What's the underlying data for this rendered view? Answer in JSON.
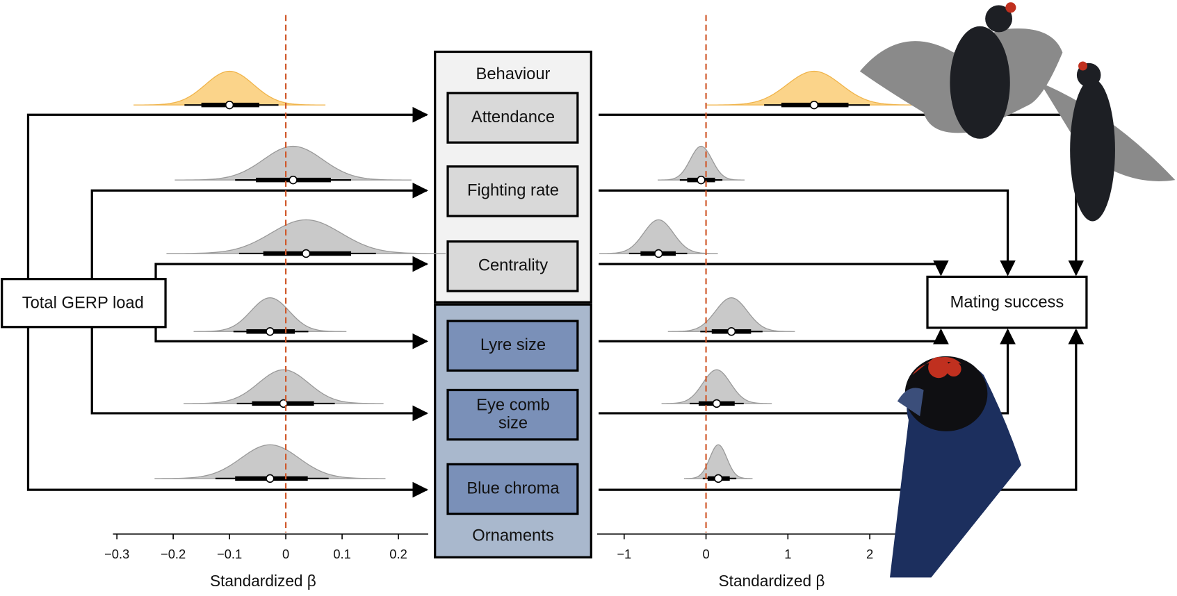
{
  "nodes": {
    "source": "Total GERP load",
    "target": "Mating success",
    "behaviour_group": "Behaviour",
    "ornaments_group": "Ornaments",
    "traits": [
      "Attendance",
      "Fighting rate",
      "Centrality",
      "Lyre size",
      "Eye comb",
      "Blue chroma"
    ],
    "trait_second_lines": [
      null,
      null,
      null,
      null,
      "size",
      null
    ]
  },
  "left_panel": {
    "axis_label": "Standardized β",
    "xlim": [
      -0.307,
      0.253
    ],
    "xticks": [
      {
        "value": -0.3,
        "label": "−0.3"
      },
      {
        "value": -0.2,
        "label": "−0.2"
      },
      {
        "value": -0.1,
        "label": "−0.1"
      },
      0,
      0.1,
      0.2
    ],
    "colors": [
      "#fbd48a",
      "#c9c9c9",
      "#c9c9c9",
      "#c9c9c9",
      "#c9c9c9",
      "#c9c9c9"
    ],
    "estimates": [
      {
        "median": -0.1,
        "q66": [
          -0.15,
          -0.047
        ],
        "q95": [
          -0.18,
          -0.013
        ]
      },
      {
        "median": 0.013,
        "q66": [
          -0.053,
          0.08
        ],
        "q95": [
          -0.09,
          0.116
        ]
      },
      {
        "median": 0.036,
        "q66": [
          -0.04,
          0.116
        ],
        "q95": [
          -0.083,
          0.16
        ]
      },
      {
        "median": -0.028,
        "q66": [
          -0.07,
          0.016
        ],
        "q95": [
          -0.093,
          0.04
        ]
      },
      {
        "median": -0.004,
        "q66": [
          -0.06,
          0.05
        ],
        "q95": [
          -0.087,
          0.087
        ]
      },
      {
        "median": -0.028,
        "q66": [
          -0.09,
          0.039
        ],
        "q95": [
          -0.125,
          0.076
        ]
      }
    ]
  },
  "right_panel": {
    "axis_label": "Standardized β",
    "xlim": [
      -1.33,
      2.75
    ],
    "xticks": [
      {
        "value": -1,
        "label": "−1"
      },
      0,
      1,
      2
    ],
    "colors": [
      "#fbd48a",
      "#c9c9c9",
      "#c9c9c9",
      "#c9c9c9",
      "#c9c9c9",
      "#c9c9c9"
    ],
    "estimates": [
      {
        "median": 1.32,
        "q66": [
          0.92,
          1.74
        ],
        "q95": [
          0.71,
          2.0
        ]
      },
      {
        "median": -0.06,
        "q66": [
          -0.23,
          0.11
        ],
        "q95": [
          -0.32,
          0.2
        ]
      },
      {
        "median": -0.58,
        "q66": [
          -0.8,
          -0.37
        ],
        "q95": [
          -0.94,
          -0.23
        ]
      },
      {
        "median": 0.31,
        "q66": [
          0.07,
          0.55
        ],
        "q95": [
          -0.07,
          0.69
        ]
      },
      {
        "median": 0.13,
        "q66": [
          -0.09,
          0.35
        ],
        "q95": [
          -0.2,
          0.46
        ]
      },
      {
        "median": 0.15,
        "q66": [
          0.02,
          0.29
        ],
        "q95": [
          -0.04,
          0.37
        ]
      }
    ]
  }
}
